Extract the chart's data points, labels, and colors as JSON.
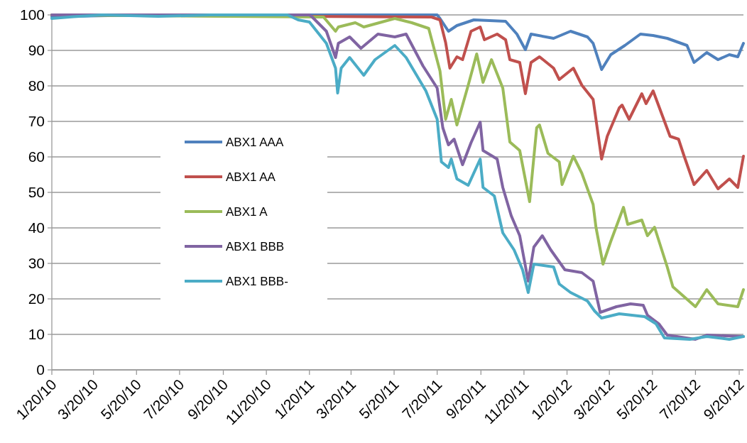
{
  "chart_data": {
    "type": "line",
    "xlim": [
      "2010-01-20",
      "2012-09-26"
    ],
    "xticks": [
      {
        "value": "2010-01-20",
        "label": "1/20/10"
      },
      {
        "value": "2010-03-20",
        "label": "3/20/10"
      },
      {
        "value": "2010-05-20",
        "label": "5/20/10"
      },
      {
        "value": "2010-07-20",
        "label": "7/20/10"
      },
      {
        "value": "2010-09-20",
        "label": "9/20/10"
      },
      {
        "value": "2010-11-20",
        "label": "11/20/10"
      },
      {
        "value": "2011-01-20",
        "label": "1/20/11"
      },
      {
        "value": "2011-03-20",
        "label": "3/20/11"
      },
      {
        "value": "2011-05-20",
        "label": "5/20/11"
      },
      {
        "value": "2011-07-20",
        "label": "7/20/11"
      },
      {
        "value": "2011-09-20",
        "label": "9/20/11"
      },
      {
        "value": "2011-11-20",
        "label": "11/20/11"
      },
      {
        "value": "2012-01-20",
        "label": "1/20/12"
      },
      {
        "value": "2012-03-20",
        "label": "3/20/12"
      },
      {
        "value": "2012-05-20",
        "label": "5/20/12"
      },
      {
        "value": "2012-07-20",
        "label": "7/20/12"
      },
      {
        "value": "2012-09-20",
        "label": "9/20/12"
      }
    ],
    "ylim": [
      0,
      100
    ],
    "yticks": [
      0,
      10,
      20,
      30,
      40,
      50,
      60,
      70,
      80,
      90,
      100
    ],
    "grid": "y",
    "legend": "left",
    "marker": "none",
    "line_style": "solid",
    "series": [
      {
        "name": "ABX1 AAA",
        "color": "#4f81bd",
        "x": [
          "2010-01-20",
          "2010-06-01",
          "2011-01-20",
          "2011-07-20",
          "2011-07-24",
          "2011-08-05",
          "2011-08-17",
          "2011-09-10",
          "2011-10-25",
          "2011-11-10",
          "2011-11-22",
          "2011-11-30",
          "2012-01-01",
          "2012-01-25",
          "2012-02-18",
          "2012-02-26",
          "2012-03-09",
          "2012-03-22",
          "2012-04-11",
          "2012-05-03",
          "2012-05-21",
          "2012-06-10",
          "2012-07-08",
          "2012-07-18",
          "2012-08-05",
          "2012-08-21",
          "2012-09-06",
          "2012-09-18",
          "2012-09-26"
        ],
        "values": [
          99.5,
          100,
          100,
          100,
          99,
          95.4,
          97,
          98.6,
          98.2,
          94.6,
          90.2,
          94.6,
          93.4,
          95.4,
          93.8,
          92,
          84.6,
          88.8,
          91.4,
          94.6,
          94.2,
          93.4,
          91.4,
          86.6,
          89.4,
          87.4,
          88.8,
          88.2,
          92
        ]
      },
      {
        "name": "ABX1 AA",
        "color": "#c0504d",
        "x": [
          "2010-01-20",
          "2011-07-12",
          "2011-07-24",
          "2011-08-01",
          "2011-08-07",
          "2011-08-17",
          "2011-08-25",
          "2011-09-06",
          "2011-09-19",
          "2011-09-25",
          "2011-10-13",
          "2011-10-25",
          "2011-10-31",
          "2011-11-14",
          "2011-11-22",
          "2011-11-30",
          "2011-12-12",
          "2012-01-01",
          "2012-01-09",
          "2012-01-29",
          "2012-02-10",
          "2012-02-26",
          "2012-03-09",
          "2012-03-17",
          "2012-04-03",
          "2012-04-07",
          "2012-04-17",
          "2012-05-05",
          "2012-05-11",
          "2012-05-21",
          "2012-06-14",
          "2012-06-26",
          "2012-07-04",
          "2012-07-18",
          "2012-08-05",
          "2012-08-21",
          "2012-09-06",
          "2012-09-18",
          "2012-09-26"
        ],
        "values": [
          100,
          99.4,
          98.6,
          92.2,
          85,
          88.2,
          87.4,
          95.4,
          96.6,
          93,
          94.6,
          93,
          87.4,
          86.6,
          77.8,
          86.6,
          88.2,
          85,
          81.8,
          85,
          80.2,
          76.2,
          59.4,
          65.8,
          73.8,
          74.6,
          70.6,
          77.8,
          75,
          78.6,
          65.8,
          65,
          60.2,
          52.2,
          56.2,
          51,
          53.8,
          51.4,
          60.2
        ]
      },
      {
        "name": "ABX1 A",
        "color": "#9bbb59",
        "x": [
          "2010-01-20",
          "2011-02-09",
          "2011-02-26",
          "2011-03-02",
          "2011-03-26",
          "2011-04-07",
          "2011-05-21",
          "2011-06-14",
          "2011-07-08",
          "2011-07-24",
          "2011-08-01",
          "2011-08-09",
          "2011-08-17",
          "2011-09-02",
          "2011-09-14",
          "2011-09-23",
          "2011-10-05",
          "2011-10-21",
          "2011-10-31",
          "2011-11-14",
          "2011-11-28",
          "2011-12-08",
          "2011-12-12",
          "2011-12-24",
          "2012-01-09",
          "2012-01-13",
          "2012-01-29",
          "2012-02-10",
          "2012-02-26",
          "2012-03-01",
          "2012-03-11",
          "2012-03-22",
          "2012-04-09",
          "2012-04-15",
          "2012-05-05",
          "2012-05-13",
          "2012-05-23",
          "2012-06-10",
          "2012-06-18",
          "2012-07-20",
          "2012-08-05",
          "2012-08-21",
          "2012-09-18",
          "2012-09-26"
        ],
        "values": [
          100,
          99.4,
          95.4,
          96.6,
          97.8,
          96.6,
          99,
          97.8,
          96.2,
          84.2,
          70.6,
          76.2,
          69,
          80.2,
          89,
          81,
          87.4,
          79.4,
          64.2,
          61.8,
          47.4,
          68.2,
          69,
          61,
          58.6,
          52.2,
          60.2,
          55.4,
          46.6,
          40.2,
          29.8,
          36.2,
          45.8,
          41,
          42.2,
          37.8,
          40.2,
          29,
          23.4,
          17.8,
          22.6,
          18.6,
          17.8,
          22.6
        ]
      },
      {
        "name": "ABX1 BBB",
        "color": "#8064a2",
        "x": [
          "2010-01-20",
          "2011-01-20",
          "2011-01-24",
          "2011-02-13",
          "2011-02-26",
          "2011-03-02",
          "2011-03-18",
          "2011-04-03",
          "2011-04-27",
          "2011-05-21",
          "2011-06-06",
          "2011-06-30",
          "2011-07-20",
          "2011-07-28",
          "2011-08-05",
          "2011-08-13",
          "2011-08-25",
          "2011-09-06",
          "2011-09-19",
          "2011-09-23",
          "2011-10-13",
          "2011-10-21",
          "2011-11-02",
          "2011-11-14",
          "2011-11-26",
          "2011-12-04",
          "2011-12-16",
          "2011-12-28",
          "2012-01-17",
          "2012-02-10",
          "2012-02-26",
          "2012-03-07",
          "2012-03-30",
          "2012-04-19",
          "2012-05-07",
          "2012-05-13",
          "2012-05-29",
          "2012-06-10",
          "2012-07-20",
          "2012-08-05",
          "2012-09-26"
        ],
        "values": [
          100,
          100,
          99.4,
          95.4,
          88,
          92,
          93.8,
          90.6,
          94.6,
          93.8,
          94.6,
          85.6,
          79.4,
          68.2,
          63.4,
          65,
          57.8,
          64,
          69.8,
          61.8,
          59.4,
          51.4,
          43.4,
          37.8,
          25,
          34.6,
          37.8,
          33.8,
          28.2,
          27.4,
          25,
          16.2,
          17.8,
          18.6,
          18.2,
          15.4,
          13,
          9.8,
          8.6,
          9.8,
          9.4
        ]
      },
      {
        "name": "ABX1 BBB-",
        "color": "#4bacc6",
        "x": [
          "2010-01-20",
          "2010-02-20",
          "2010-04-01",
          "2010-06-20",
          "2010-09-01",
          "2010-12-20",
          "2011-01-04",
          "2011-01-20",
          "2011-02-13",
          "2011-02-26",
          "2011-03-01",
          "2011-03-06",
          "2011-03-18",
          "2011-04-07",
          "2011-04-23",
          "2011-05-21",
          "2011-06-06",
          "2011-07-04",
          "2011-07-20",
          "2011-07-26",
          "2011-08-05",
          "2011-08-09",
          "2011-08-17",
          "2011-09-02",
          "2011-09-19",
          "2011-09-23",
          "2011-10-09",
          "2011-10-21",
          "2011-11-06",
          "2011-11-18",
          "2011-11-26",
          "2011-12-04",
          "2012-01-01",
          "2012-01-09",
          "2012-01-25",
          "2012-02-18",
          "2012-02-28",
          "2012-03-09",
          "2012-04-03",
          "2012-05-09",
          "2012-05-25",
          "2012-06-06",
          "2012-07-12",
          "2012-08-05",
          "2012-09-06",
          "2012-09-26"
        ],
        "values": [
          99,
          99.5,
          100,
          99.6,
          100,
          100,
          98.6,
          98,
          92,
          85,
          78,
          85,
          88,
          83,
          87.4,
          91.4,
          88,
          78.6,
          70.6,
          58.6,
          57,
          59.4,
          53.8,
          52,
          59.4,
          51.4,
          49,
          38.6,
          33.8,
          28.2,
          21.8,
          29.8,
          29,
          24.2,
          21.8,
          19.4,
          16.6,
          14.6,
          15.8,
          15,
          13,
          9,
          8.6,
          9.4,
          8.6,
          9.4
        ]
      }
    ]
  }
}
